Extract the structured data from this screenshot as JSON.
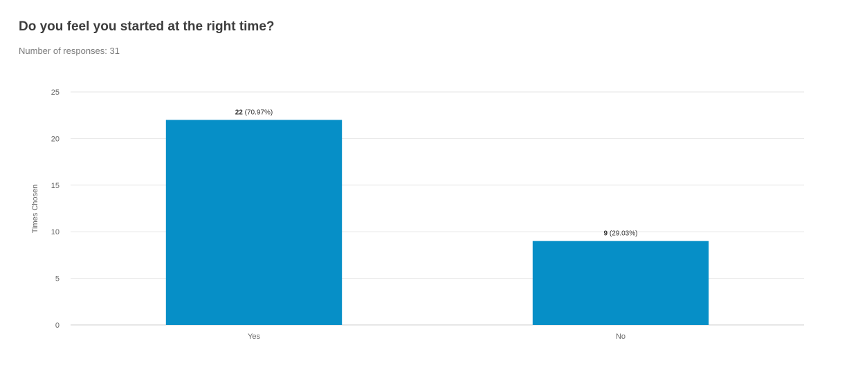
{
  "question": {
    "title": "Do you feel you started at the right time?",
    "response_count_label": "Number of responses: 31"
  },
  "colors": {
    "bar": "#068fc7",
    "grid": "#e6e6e6",
    "axis": "#cccccc"
  },
  "chart_data": {
    "type": "bar",
    "categories": [
      "Yes",
      "No"
    ],
    "values": [
      22,
      9
    ],
    "data_labels": [
      {
        "count": "22",
        "percent": "(70.97%)"
      },
      {
        "count": "9",
        "percent": "(29.03%)"
      }
    ],
    "title": "Do you feel you started at the right time?",
    "xlabel": "",
    "ylabel": "Times Chosen",
    "ylim": [
      0,
      25
    ],
    "yticks": [
      0,
      5,
      10,
      15,
      20,
      25
    ],
    "grid": true,
    "legend": "none"
  }
}
